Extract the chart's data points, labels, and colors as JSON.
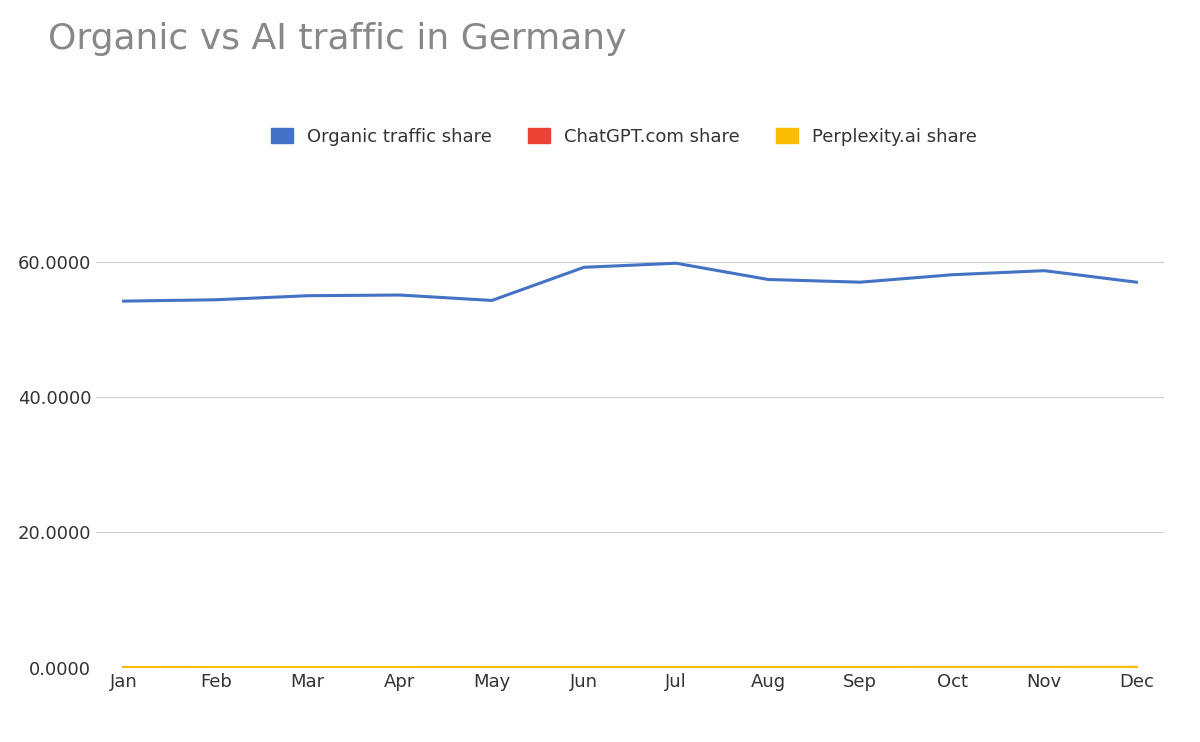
{
  "title": "Organic vs AI traffic in Germany",
  "months": [
    "Jan",
    "Feb",
    "Mar",
    "Apr",
    "May",
    "Jun",
    "Jul",
    "Aug",
    "Sep",
    "Oct",
    "Nov",
    "Dec"
  ],
  "organic": [
    54.2,
    54.4,
    55.0,
    55.1,
    54.3,
    59.2,
    59.8,
    57.4,
    57.0,
    58.1,
    58.7,
    57.0
  ],
  "chatgpt": [
    0.02,
    0.02,
    0.02,
    0.02,
    0.02,
    0.02,
    0.02,
    0.03,
    0.03,
    0.03,
    0.04,
    0.05
  ],
  "perplexity": [
    0.03,
    0.04,
    0.04,
    0.04,
    0.05,
    0.05,
    0.05,
    0.05,
    0.05,
    0.06,
    0.06,
    0.07
  ],
  "organic_color": "#4472C4",
  "chatgpt_color": "#EA4335",
  "perplexity_color": "#FBBC04",
  "legend_labels": [
    "Organic traffic share",
    "ChatGPT.com share",
    "Perplexity.ai share"
  ],
  "ylim": [
    0,
    68
  ],
  "yticks": [
    0,
    20,
    40,
    60
  ],
  "ytick_labels": [
    "0.0000",
    "20.0000",
    "40.0000",
    "60.0000"
  ],
  "background_color": "#ffffff",
  "title_color": "#888888",
  "title_fontsize": 26,
  "axis_fontsize": 13,
  "legend_fontsize": 13,
  "tick_color": "#333333",
  "line_width": 2.2,
  "grid_color": "#cccccc"
}
